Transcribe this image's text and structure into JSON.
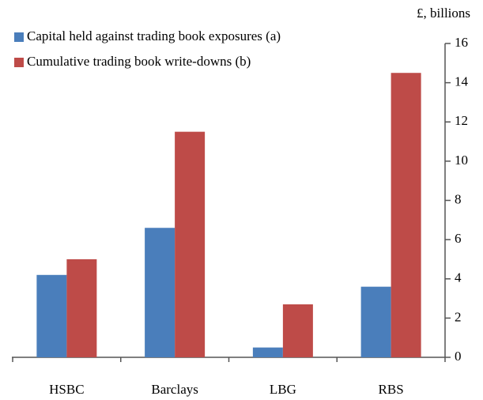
{
  "chart_data": {
    "type": "bar",
    "unit_label": "£, billions",
    "categories": [
      "HSBC",
      "Barclays",
      "LBG",
      "RBS"
    ],
    "series": [
      {
        "name": "Capital held against trading book exposures (a)",
        "color": "#4a7ebb",
        "values": [
          4.2,
          6.6,
          0.5,
          3.6
        ]
      },
      {
        "name": "Cumulative trading book write-downs (b)",
        "color": "#be4b48",
        "values": [
          5.0,
          11.5,
          2.7,
          14.5
        ]
      }
    ],
    "ylim": [
      0,
      16
    ],
    "yticks": [
      0,
      2,
      4,
      6,
      8,
      10,
      12,
      14,
      16
    ],
    "y_axis_side": "right",
    "legend": "top-left",
    "grid": false
  }
}
